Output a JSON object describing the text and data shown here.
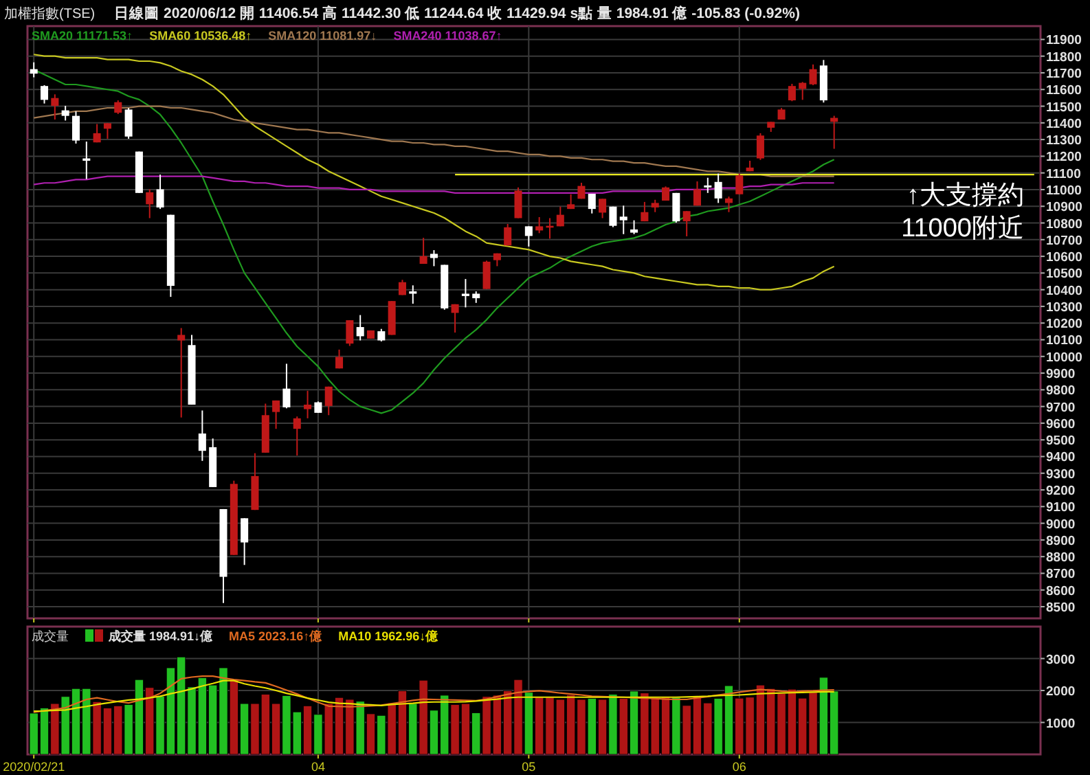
{
  "chart_data": [
    {
      "type": "candlestick",
      "title": "加權指數(TSE)",
      "subtitle": "日線圖 2020/06/12 開 11406.54 高 11442.30 低 11244.64 收 11429.94 s點 量 1984.91 億 -105.83 (-0.92%)",
      "categories": [
        "2020/02/21",
        null,
        null,
        null,
        null,
        null,
        null,
        null,
        null,
        null,
        null,
        null,
        null,
        null,
        null,
        null,
        null,
        null,
        null,
        null,
        null,
        null,
        null,
        null,
        null,
        null,
        null,
        "04",
        null,
        null,
        null,
        null,
        null,
        null,
        null,
        null,
        null,
        null,
        null,
        null,
        null,
        null,
        null,
        null,
        null,
        null,
        null,
        "05",
        null,
        null,
        null,
        null,
        null,
        null,
        null,
        null,
        null,
        null,
        null,
        null,
        null,
        null,
        null,
        null,
        null,
        null,
        null,
        "06",
        null,
        null,
        null,
        null,
        null,
        null,
        null,
        null,
        null,
        null,
        null,
        null,
        null,
        null,
        null,
        null,
        null,
        null,
        null,
        null,
        null,
        null,
        null,
        null,
        null,
        null,
        null,
        null
      ],
      "ohlc": [
        [
          11722,
          11763,
          11673,
          11695
        ],
        [
          11621,
          11626,
          11516,
          11538
        ],
        [
          11502,
          11571,
          11420,
          11549
        ],
        [
          11475,
          11502,
          11414,
          11442
        ],
        [
          11442,
          11469,
          11276,
          11294
        ],
        [
          11187,
          11288,
          11063,
          11173
        ],
        [
          11283,
          11393,
          11283,
          11338
        ],
        [
          11365,
          11398,
          11305,
          11398
        ],
        [
          11461,
          11535,
          11453,
          11524
        ],
        [
          11480,
          11489,
          11305,
          11318
        ],
        [
          11228,
          11228,
          10980,
          10980
        ],
        [
          10912,
          11002,
          10829,
          10984
        ],
        [
          11002,
          11090,
          10884,
          10893
        ],
        [
          10849,
          10849,
          10357,
          10423
        ],
        [
          10096,
          10170,
          9634,
          10129
        ],
        [
          10068,
          10129,
          9711,
          9711
        ],
        [
          9538,
          9676,
          9374,
          9434
        ],
        [
          9456,
          9508,
          9217,
          9217
        ],
        [
          9085,
          9085,
          8522,
          8679
        ],
        [
          8810,
          9255,
          8810,
          9236
        ],
        [
          9030,
          9030,
          8750,
          8885
        ],
        [
          9080,
          9420,
          9080,
          9283
        ],
        [
          9423,
          9717,
          9423,
          9648
        ],
        [
          9667,
          9736,
          9566,
          9736
        ],
        [
          9807,
          9956,
          9689,
          9695
        ],
        [
          9566,
          9640,
          9406,
          9629
        ],
        [
          9684,
          9794,
          9629,
          9711
        ],
        [
          9725,
          9730,
          9662,
          9662
        ],
        [
          9703,
          9819,
          9648,
          9819
        ],
        [
          9928,
          10041,
          9928,
          9997
        ],
        [
          10077,
          10217,
          10063,
          10217
        ],
        [
          10176,
          10248,
          10096,
          10121
        ],
        [
          10107,
          10156,
          10107,
          10156
        ],
        [
          10151,
          10165,
          10090,
          10096
        ],
        [
          10129,
          10332,
          10129,
          10332
        ],
        [
          10368,
          10459,
          10368,
          10445
        ],
        [
          10390,
          10426,
          10316,
          10376
        ],
        [
          10555,
          10711,
          10555,
          10601
        ],
        [
          10615,
          10637,
          10541,
          10590
        ],
        [
          10549,
          10549,
          10280,
          10288
        ],
        [
          10261,
          10313,
          10143,
          10313
        ],
        [
          10376,
          10464,
          10294,
          10362
        ],
        [
          10376,
          10390,
          10321,
          10349
        ],
        [
          10404,
          10574,
          10404,
          10568
        ],
        [
          10577,
          10618,
          10541,
          10618
        ],
        [
          10665,
          10794,
          10665,
          10774
        ],
        [
          10829,
          11013,
          10829,
          10994
        ],
        [
          10780,
          10780,
          10659,
          10722
        ],
        [
          10755,
          10835,
          10739,
          10780
        ],
        [
          10772,
          10829,
          10706,
          10783
        ],
        [
          10780,
          10898,
          10780,
          10849
        ],
        [
          10884,
          10972,
          10884,
          10912
        ],
        [
          10945,
          11041,
          10945,
          11022
        ],
        [
          10975,
          10975,
          10857,
          10884
        ],
        [
          10862,
          10945,
          10829,
          10945
        ],
        [
          10898,
          10898,
          10775,
          10783
        ],
        [
          10838,
          10904,
          10733,
          10816
        ],
        [
          10761,
          10816,
          10733,
          10742
        ],
        [
          10810,
          10926,
          10810,
          10865
        ],
        [
          10893,
          10939,
          10865,
          10920
        ],
        [
          10934,
          11019,
          10934,
          11013
        ],
        [
          10980,
          10980,
          10802,
          10810
        ],
        [
          10810,
          10871,
          10720,
          10871
        ],
        [
          10904,
          11049,
          10904,
          11002
        ],
        [
          11025,
          11071,
          10980,
          11013
        ],
        [
          11046,
          11096,
          10920,
          10947
        ],
        [
          10920,
          10958,
          10865,
          10947
        ],
        [
          10972,
          11096,
          10972,
          11085
        ],
        [
          11110,
          11173,
          11110,
          11132
        ],
        [
          11187,
          11338,
          11178,
          11324
        ],
        [
          11371,
          11406,
          11346,
          11406
        ],
        [
          11420,
          11489,
          11420,
          11480
        ],
        [
          11535,
          11634,
          11530,
          11621
        ],
        [
          11604,
          11645,
          11538,
          11640
        ],
        [
          11631,
          11750,
          11626,
          11722
        ],
        [
          11744,
          11777,
          11522,
          11535
        ],
        [
          11406.54,
          11442.3,
          11244.64,
          11429.94
        ],
        null,
        null,
        null,
        null,
        null,
        null,
        null,
        null,
        null,
        null,
        null,
        null,
        null,
        null,
        null,
        null,
        null,
        null,
        null
      ],
      "colors": [
        "#ffffff",
        "#ffffff",
        "#c01818",
        "#ffffff",
        "#ffffff",
        "#ffffff",
        "#c01818",
        "#c01818",
        "#c01818",
        "#ffffff",
        "#ffffff",
        "#c01818",
        "#ffffff",
        "#ffffff",
        "#c01818",
        "#ffffff",
        "#ffffff",
        "#ffffff",
        "#ffffff",
        "#c01818",
        "#ffffff",
        "#c01818",
        "#c01818",
        "#c01818",
        "#ffffff",
        "#c01818",
        "#c01818",
        "#ffffff",
        "#c01818",
        "#c01818",
        "#c01818",
        "#ffffff",
        "#c01818",
        "#ffffff",
        "#c01818",
        "#c01818",
        "#ffffff",
        "#c01818",
        "#ffffff",
        "#ffffff",
        "#c01818",
        "#ffffff",
        "#ffffff",
        "#c01818",
        "#c01818",
        "#c01818",
        "#c01818",
        "#ffffff",
        "#c01818",
        "#c01818",
        "#c01818",
        "#c01818",
        "#c01818",
        "#ffffff",
        "#c01818",
        "#ffffff",
        "#ffffff",
        "#ffffff",
        "#c01818",
        "#c01818",
        "#c01818",
        "#ffffff",
        "#c01818",
        "#c01818",
        "#ffffff",
        "#ffffff",
        "#c01818",
        "#c01818",
        "#c01818",
        "#c01818",
        "#c01818",
        "#c01818",
        "#c01818",
        "#c01818",
        "#c01818",
        "#ffffff",
        "#c01818",
        null,
        null,
        null,
        null,
        null,
        null,
        null,
        null,
        null,
        null,
        null,
        null,
        null,
        null,
        null,
        null,
        null,
        null,
        null
      ],
      "series": [
        {
          "type": "line",
          "name": "SMA20 11171.53↑",
          "color": "#1f9a1f",
          "values": [
            11720,
            11690,
            11660,
            11630,
            11630,
            11620,
            11610,
            11600,
            11590,
            11560,
            11540,
            11500,
            11450,
            11370,
            11280,
            11180,
            11080,
            10930,
            10790,
            10640,
            10500,
            10410,
            10320,
            10230,
            10140,
            10060,
            10000,
            9940,
            9860,
            9790,
            9740,
            9700,
            9680,
            9660,
            9680,
            9730,
            9780,
            9840,
            9920,
            9990,
            10050,
            10110,
            10160,
            10220,
            10290,
            10350,
            10410,
            10470,
            10500,
            10530,
            10570,
            10600,
            10630,
            10660,
            10680,
            10690,
            10700,
            10710,
            10730,
            10760,
            10790,
            10810,
            10840,
            10850,
            10870,
            10880,
            10890,
            10910,
            10930,
            10960,
            10990,
            11020,
            11050,
            11080,
            11110,
            11150,
            11180,
            null,
            null,
            null,
            null,
            null,
            null,
            null,
            null,
            null,
            null,
            null,
            null,
            null,
            null,
            null,
            null,
            null,
            null,
            null
          ]
        },
        {
          "type": "line",
          "name": "SMA60 10536.48↑",
          "color": "#c8c820",
          "values": [
            11810,
            11800,
            11800,
            11790,
            11790,
            11790,
            11790,
            11780,
            11780,
            11780,
            11770,
            11770,
            11760,
            11740,
            11710,
            11690,
            11660,
            11620,
            11570,
            11500,
            11430,
            11380,
            11340,
            11300,
            11260,
            11220,
            11180,
            11150,
            11110,
            11080,
            11050,
            11020,
            10990,
            10960,
            10940,
            10920,
            10900,
            10880,
            10860,
            10830,
            10790,
            10750,
            10720,
            10680,
            10670,
            10660,
            10650,
            10640,
            10620,
            10600,
            10590,
            10570,
            10560,
            10550,
            10540,
            10520,
            10510,
            10500,
            10480,
            10470,
            10460,
            10450,
            10440,
            10430,
            10430,
            10420,
            10420,
            10410,
            10410,
            10400,
            10400,
            10410,
            10420,
            10450,
            10470,
            10510,
            10540,
            null,
            null,
            null,
            null,
            null,
            null,
            null,
            null,
            null,
            null,
            null,
            null,
            null,
            null,
            null,
            null,
            null,
            null,
            null
          ]
        },
        {
          "type": "line",
          "name": "SMA120 11081.97↓",
          "color": "#a07850",
          "values": [
            11430,
            11440,
            11450,
            11460,
            11470,
            11470,
            11480,
            11490,
            11490,
            11490,
            11500,
            11500,
            11500,
            11490,
            11490,
            11480,
            11470,
            11460,
            11440,
            11420,
            11410,
            11400,
            11390,
            11380,
            11370,
            11360,
            11360,
            11350,
            11340,
            11340,
            11330,
            11320,
            11310,
            11300,
            11290,
            11290,
            11280,
            11280,
            11270,
            11270,
            11260,
            11260,
            11250,
            11240,
            11230,
            11230,
            11220,
            11210,
            11210,
            11200,
            11200,
            11190,
            11190,
            11180,
            11180,
            11170,
            11170,
            11160,
            11160,
            11150,
            11140,
            11140,
            11130,
            11120,
            11110,
            11110,
            11100,
            11090,
            11090,
            11090,
            11080,
            11080,
            11080,
            11080,
            11080,
            11080,
            11080,
            null,
            null,
            null,
            null,
            null,
            null,
            null,
            null,
            null,
            null,
            null,
            null,
            null,
            null,
            null,
            null,
            null,
            null,
            null
          ]
        },
        {
          "type": "line",
          "name": "SMA240 11038.67↑",
          "color": "#b020b0",
          "values": [
            11030,
            11040,
            11040,
            11050,
            11060,
            11060,
            11070,
            11080,
            11080,
            11080,
            11080,
            11080,
            11080,
            11080,
            11080,
            11080,
            11080,
            11070,
            11060,
            11050,
            11050,
            11040,
            11040,
            11030,
            11020,
            11020,
            11020,
            11010,
            11010,
            11010,
            11000,
            11000,
            11000,
            10990,
            10990,
            10990,
            10990,
            10990,
            10990,
            10990,
            10980,
            10980,
            10980,
            10980,
            10980,
            10980,
            10980,
            10980,
            10980,
            10980,
            10980,
            10980,
            10980,
            10980,
            10980,
            10990,
            10990,
            10990,
            10990,
            10990,
            10990,
            11000,
            11000,
            11000,
            11000,
            11010,
            11010,
            11010,
            11020,
            11020,
            11030,
            11030,
            11030,
            11040,
            11040,
            11040,
            11040,
            null,
            null,
            null,
            null,
            null,
            null,
            null,
            null,
            null,
            null,
            null,
            null,
            null,
            null,
            null,
            null,
            null,
            null,
            null
          ]
        },
        {
          "type": "line",
          "color": "#e8e820",
          "values": [
            null,
            null,
            null,
            null,
            null,
            null,
            null,
            null,
            null,
            null,
            null,
            null,
            null,
            null,
            null,
            null,
            null,
            null,
            null,
            null,
            null,
            null,
            null,
            null,
            null,
            null,
            null,
            null,
            null,
            null,
            null,
            null,
            null,
            null,
            null,
            null,
            null,
            null,
            null,
            null,
            11090,
            11090,
            11090,
            11090,
            11090,
            11090,
            11090,
            11090,
            11090,
            11090,
            11090,
            11090,
            11090,
            11090,
            11090,
            11090,
            11090,
            11090,
            11090,
            11090,
            11090,
            11090,
            11090,
            11090,
            11090,
            11090,
            11090,
            11090,
            11090,
            11090,
            11090,
            11090,
            11090,
            11090,
            11090,
            11090,
            11090,
            11090,
            11090,
            11090,
            11090,
            11090,
            11090,
            11090,
            11090,
            11090,
            11090,
            11090,
            11090,
            11090,
            11090,
            11090,
            11090,
            11090,
            11090,
            11090
          ]
        }
      ],
      "ylim": [
        8430,
        11980
      ],
      "yticks": [
        8500,
        8600,
        8700,
        8800,
        8900,
        9000,
        9100,
        9200,
        9300,
        9400,
        9500,
        9600,
        9700,
        9800,
        9900,
        10000,
        10100,
        10200,
        10300,
        10400,
        10500,
        10600,
        10700,
        10800,
        10900,
        11000,
        11100,
        11200,
        11300,
        11400,
        11500,
        11600,
        11700,
        11800,
        11900
      ],
      "tick_labels": "y",
      "grid": true,
      "legend": "top left",
      "annotations": [
        "↑大支撐約\n11000附近"
      ]
    },
    {
      "type": "bar",
      "title": "成交量",
      "categories": [
        "2020/02/21",
        null,
        null,
        null,
        null,
        null,
        null,
        null,
        null,
        null,
        null,
        null,
        null,
        null,
        null,
        null,
        null,
        null,
        null,
        null,
        null,
        null,
        null,
        null,
        null,
        null,
        null,
        "04",
        null,
        null,
        null,
        null,
        null,
        null,
        null,
        null,
        null,
        null,
        null,
        null,
        null,
        null,
        null,
        null,
        null,
        null,
        null,
        "05",
        null,
        null,
        null,
        null,
        null,
        null,
        null,
        null,
        null,
        null,
        null,
        null,
        null,
        null,
        null,
        null,
        null,
        null,
        null,
        "06",
        null,
        null,
        null,
        null,
        null,
        null,
        null,
        null,
        null,
        null,
        null,
        null,
        null,
        null,
        null,
        null,
        null,
        null,
        null,
        null,
        null,
        null,
        null,
        null,
        null,
        null,
        null,
        null
      ],
      "series": [
        {
          "name": "成交量 1984.91↓億",
          "colors": [
            "#22c022",
            "#22c022",
            "#b01515",
            "#22c022",
            "#22c022",
            "#22c022",
            "#b01515",
            "#b01515",
            "#b01515",
            "#22c022",
            "#22c022",
            "#b01515",
            "#22c022",
            "#22c022",
            "#22c022",
            "#22c022",
            "#22c022",
            "#22c022",
            "#22c022",
            "#b01515",
            "#22c022",
            "#b01515",
            "#b01515",
            "#b01515",
            "#22c022",
            "#22c022",
            "#b01515",
            "#22c022",
            "#b01515",
            "#b01515",
            "#b01515",
            "#22c022",
            "#b01515",
            "#22c022",
            "#b01515",
            "#b01515",
            "#22c022",
            "#b01515",
            "#22c022",
            "#22c022",
            "#b01515",
            "#b01515",
            "#22c022",
            "#b01515",
            "#b01515",
            "#b01515",
            "#b01515",
            "#22c022",
            "#b01515",
            "#b01515",
            "#b01515",
            "#b01515",
            "#b01515",
            "#22c022",
            "#b01515",
            "#22c022",
            "#b01515",
            "#22c022",
            "#b01515",
            "#b01515",
            "#b01515",
            "#22c022",
            "#b01515",
            "#b01515",
            "#b01515",
            "#22c022",
            "#22c022",
            "#b01515",
            "#b01515",
            "#b01515",
            "#b01515",
            "#b01515",
            "#b01515",
            "#b01515",
            "#b01515",
            "#22c022",
            "#22c022",
            null,
            null,
            null,
            null,
            null,
            null,
            null,
            null,
            null,
            null,
            null,
            null,
            null,
            null,
            null,
            null,
            null,
            null,
            null
          ],
          "values": [
            1290,
            1450,
            1590,
            1810,
            2060,
            2060,
            1650,
            1450,
            1520,
            1560,
            2340,
            2090,
            1820,
            2710,
            3050,
            2110,
            2400,
            2170,
            2710,
            2350,
            1590,
            1590,
            1880,
            1590,
            1840,
            1330,
            1520,
            1250,
            1590,
            1780,
            1720,
            1660,
            1270,
            1220,
            1610,
            1990,
            1590,
            2320,
            1380,
            1850,
            1560,
            1590,
            1300,
            1810,
            1850,
            1990,
            2340,
            1940,
            1790,
            1790,
            1720,
            1860,
            1720,
            1750,
            1720,
            1880,
            1750,
            1980,
            1920,
            1760,
            1790,
            1780,
            1530,
            1810,
            1610,
            1750,
            2150,
            1760,
            1790,
            2170,
            2060,
            1910,
            2040,
            1760,
            1940,
            2410,
            1980,
            null,
            null,
            null,
            null,
            null,
            null,
            null,
            null,
            null,
            null,
            null,
            null,
            null,
            null,
            null,
            null,
            null,
            null,
            null
          ]
        },
        {
          "type": "line",
          "name": "MA5 2023.16↑億",
          "color": "#e06a20",
          "values": [
            1320,
            1370,
            1410,
            1460,
            1590,
            1720,
            1770,
            1710,
            1650,
            1610,
            1690,
            1770,
            1910,
            2140,
            2370,
            2420,
            2450,
            2450,
            2390,
            2340,
            2310,
            2270,
            2240,
            2130,
            2010,
            1890,
            1760,
            1630,
            1510,
            1500,
            1490,
            1500,
            1520,
            1540,
            1590,
            1640,
            1690,
            1730,
            1720,
            1710,
            1700,
            1690,
            1680,
            1730,
            1810,
            1880,
            1940,
            1970,
            1990,
            1960,
            1920,
            1890,
            1860,
            1820,
            1810,
            1800,
            1790,
            1770,
            1760,
            1750,
            1730,
            1720,
            1720,
            1770,
            1810,
            1860,
            1900,
            1950,
            1990,
            2030,
            2010,
            1980,
            1960,
            1980,
            1990,
            2010,
            2020,
            null,
            null,
            null,
            null,
            null,
            null,
            null,
            null,
            null,
            null,
            null,
            null,
            null,
            null,
            null,
            null,
            null,
            null,
            null
          ]
        },
        {
          "type": "line",
          "name": "MA10 1962.96↓億",
          "color": "#e8e000",
          "values": [
            1350,
            1360,
            1380,
            1390,
            1450,
            1500,
            1560,
            1610,
            1660,
            1700,
            1730,
            1770,
            1820,
            1900,
            1970,
            2050,
            2140,
            2220,
            2310,
            2310,
            2210,
            2140,
            2080,
            2000,
            1910,
            1840,
            1760,
            1700,
            1630,
            1600,
            1590,
            1560,
            1550,
            1530,
            1560,
            1580,
            1600,
            1630,
            1640,
            1640,
            1640,
            1650,
            1670,
            1700,
            1730,
            1770,
            1790,
            1790,
            1790,
            1790,
            1790,
            1790,
            1790,
            1790,
            1790,
            1790,
            1790,
            1790,
            1790,
            1790,
            1790,
            1790,
            1800,
            1810,
            1820,
            1840,
            1850,
            1860,
            1880,
            1900,
            1910,
            1920,
            1930,
            1940,
            1950,
            1960,
            1960,
            null,
            null,
            null,
            null,
            null,
            null,
            null,
            null,
            null,
            null,
            null,
            null,
            null,
            null,
            null,
            null,
            null,
            null,
            null
          ]
        }
      ],
      "ylim": [
        0,
        4000
      ],
      "yticks": [
        1000,
        2000,
        3000
      ],
      "grid": true,
      "legend": "top left"
    }
  ]
}
